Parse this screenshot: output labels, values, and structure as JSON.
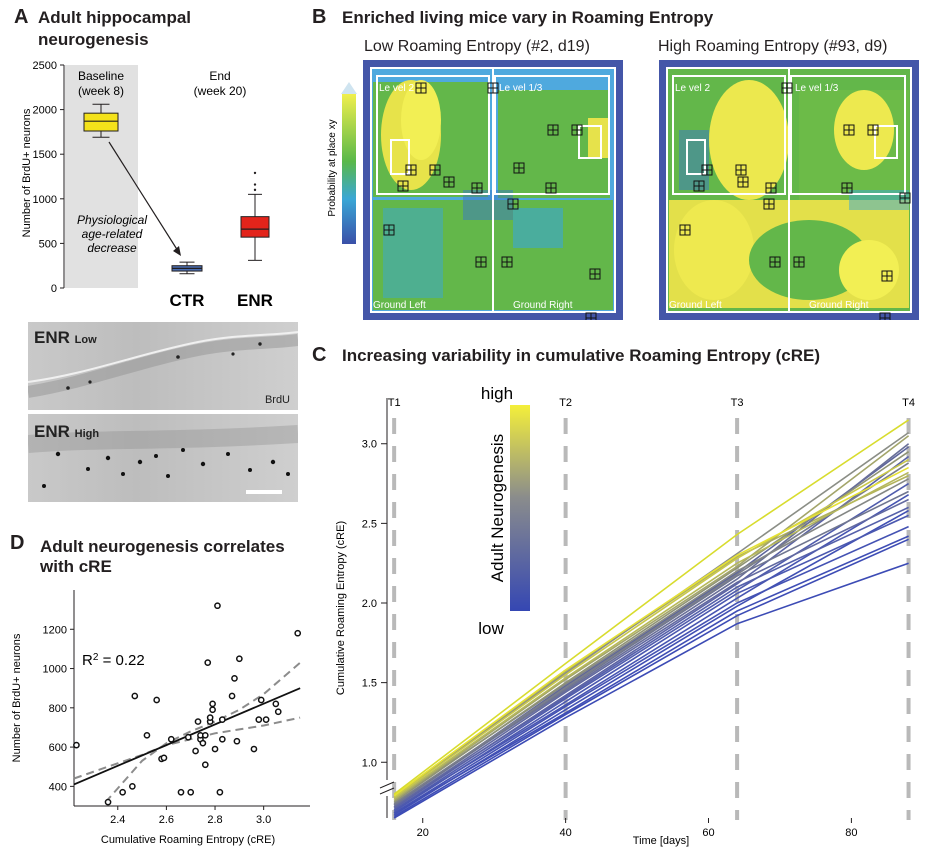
{
  "panelA": {
    "letter": "A",
    "title_line1": "Adult hippocampal",
    "title_line2": "neurogenesis",
    "ylabel": "Number of BrdU+ neurons",
    "yticks": [
      "0",
      "500",
      "1000",
      "1500",
      "2000",
      "2500"
    ],
    "baseline_line1": "Baseline",
    "baseline_line2": "(week 8)",
    "end_line1": "End",
    "end_line2": "(week 20)",
    "annot_line1": "Physiological",
    "annot_line2": "age-related",
    "annot_line3": "decrease",
    "cat_ctr": "CTR",
    "cat_enr": "ENR",
    "img_low_title": "ENR",
    "img_low_sub": "Low",
    "img_high_title": "ENR",
    "img_high_sub": "High",
    "img_stain": "BrdU"
  },
  "panelB": {
    "letter": "B",
    "title": "Enriched living mice vary in Roaming Entropy",
    "left_title": "Low Roaming Entropy (#2, d19)",
    "right_title": "High Roaming Entropy (#93, d9)",
    "colorbar_label": "Probability at place xy",
    "label_level2": "Le vel 2",
    "label_level13": "Le vel 1/3",
    "label_ground_left": "Ground Left",
    "label_ground_right": "Ground Right"
  },
  "panelC": {
    "letter": "C",
    "title": "Increasing variability in cumulative Roaming Entropy (cRE)",
    "ylabel": "Cumulative Roaming Entropy (cRE)",
    "xlabel": "Time [days]",
    "xticks": [
      "20",
      "40",
      "60",
      "80"
    ],
    "yticks": [
      "1.0",
      "1.5",
      "2.0",
      "2.5",
      "3.0"
    ],
    "timepoints": [
      "T1",
      "T2",
      "T3",
      "T4"
    ],
    "legend_title": "Adult Neurogenesis",
    "legend_high": "high",
    "legend_low": "low"
  },
  "panelD": {
    "letter": "D",
    "title_line1": "Adult neurogenesis correlates",
    "title_line2": "with cRE",
    "ylabel": "Number of BrdU+ neurons",
    "xlabel": "Cumulative Roaming Entropy (cRE)",
    "r2_text": "R",
    "r2_value": " = 0.22",
    "xticks": [
      "2.4",
      "2.6",
      "2.8",
      "3.0"
    ],
    "yticks": [
      "400",
      "600",
      "800",
      "1000",
      "1200"
    ]
  },
  "chart_data": [
    {
      "panel": "A",
      "type": "box",
      "ylabel": "Number of BrdU+ neurons",
      "ylim": [
        0,
        2500
      ],
      "groups": [
        {
          "name": "Baseline (week 8)",
          "color": "#f4e21a",
          "whisker_low": 1690,
          "q1": 1760,
          "median": 1870,
          "q3": 1960,
          "whisker_high": 2060,
          "outliers": []
        },
        {
          "name": "CTR",
          "color": "#4a6db0",
          "whisker_low": 160,
          "q1": 190,
          "median": 220,
          "q3": 250,
          "whisker_high": 290,
          "outliers": []
        },
        {
          "name": "ENR",
          "color": "#e3241b",
          "whisker_low": 310,
          "q1": 570,
          "median": 660,
          "q3": 800,
          "whisker_high": 1050,
          "outliers": [
            1100,
            1160,
            1290
          ]
        }
      ]
    },
    {
      "panel": "C",
      "type": "line",
      "xlabel": "Time [days]",
      "ylabel": "Cumulative Roaming Entropy (cRE)",
      "xlim": [
        15,
        91
      ],
      "ylim": [
        0.65,
        3.35
      ],
      "x": [
        16,
        40,
        64,
        88
      ],
      "series": [
        {
          "color": "#d8dc2e",
          "values": [
            0.8,
            1.62,
            2.43,
            3.15
          ]
        },
        {
          "color": "#e6e233",
          "values": [
            0.79,
            1.58,
            2.3,
            2.85
          ]
        },
        {
          "color": "#c9c84a",
          "values": [
            0.78,
            1.55,
            2.28,
            2.9
          ]
        },
        {
          "color": "#b6b85a",
          "values": [
            0.77,
            1.53,
            2.25,
            2.82
          ]
        },
        {
          "color": "#a3a56a",
          "values": [
            0.76,
            1.52,
            2.23,
            3.05
          ]
        },
        {
          "color": "#8f9375",
          "values": [
            0.75,
            1.5,
            2.22,
            2.95
          ]
        },
        {
          "color": "#848785",
          "values": [
            0.76,
            1.49,
            2.2,
            2.78
          ]
        },
        {
          "color": "#7a7e8a",
          "values": [
            0.74,
            1.47,
            2.18,
            2.88
          ]
        },
        {
          "color": "#707690",
          "values": [
            0.73,
            1.46,
            2.17,
            2.7
          ]
        },
        {
          "color": "#696f98",
          "values": [
            0.74,
            1.45,
            2.15,
            3.0
          ]
        },
        {
          "color": "#6269a0",
          "values": [
            0.72,
            1.44,
            2.13,
            2.65
          ]
        },
        {
          "color": "#5b63a5",
          "values": [
            0.71,
            1.42,
            2.12,
            2.92
          ]
        },
        {
          "color": "#5560aa",
          "values": [
            0.72,
            1.41,
            2.1,
            2.6
          ]
        },
        {
          "color": "#505cad",
          "values": [
            0.7,
            1.4,
            2.08,
            2.75
          ]
        },
        {
          "color": "#4b58b0",
          "values": [
            0.69,
            1.38,
            2.06,
            2.55
          ]
        },
        {
          "color": "#4755b2",
          "values": [
            0.7,
            1.36,
            2.03,
            2.68
          ]
        },
        {
          "color": "#4452b3",
          "values": [
            0.68,
            1.35,
            2.0,
            2.48
          ]
        },
        {
          "color": "#4150b4",
          "values": [
            0.67,
            1.33,
            1.98,
            2.58
          ]
        },
        {
          "color": "#3f4eb5",
          "values": [
            0.68,
            1.31,
            1.95,
            2.42
          ]
        },
        {
          "color": "#3d4cb5",
          "values": [
            0.66,
            1.3,
            1.92,
            2.4
          ]
        },
        {
          "color": "#3c4bb5",
          "values": [
            0.65,
            1.28,
            1.87,
            2.25
          ]
        },
        {
          "color": "#8b8e86",
          "values": [
            0.78,
            1.56,
            2.31,
            3.07
          ]
        },
        {
          "color": "#b2b35c",
          "values": [
            0.79,
            1.57,
            2.29,
            2.8
          ]
        },
        {
          "color": "#5d659c",
          "values": [
            0.73,
            1.48,
            2.19,
            2.98
          ]
        }
      ]
    },
    {
      "panel": "D",
      "type": "scatter",
      "xlabel": "Cumulative Roaming Entropy (cRE)",
      "ylabel": "Number of BrdU+ neurons",
      "xlim": [
        2.22,
        3.17
      ],
      "ylim": [
        300,
        1400
      ],
      "r2": 0.22,
      "fit": {
        "x": [
          2.22,
          3.15
        ],
        "y": [
          410,
          900
        ]
      },
      "ci_upper": {
        "x": [
          2.35,
          2.5,
          2.6,
          2.7,
          2.8,
          2.9,
          3.0,
          3.15
        ],
        "y": [
          320,
          530,
          620,
          680,
          730,
          790,
          870,
          1030
        ]
      },
      "ci_lower": {
        "x": [
          2.22,
          2.5,
          2.6,
          2.7,
          2.8,
          2.9,
          3.0,
          3.15
        ],
        "y": [
          440,
          560,
          610,
          640,
          670,
          690,
          710,
          750
        ]
      },
      "points": {
        "x": [
          2.23,
          2.36,
          2.42,
          2.46,
          2.47,
          2.52,
          2.56,
          2.58,
          2.59,
          2.62,
          2.66,
          2.69,
          2.7,
          2.72,
          2.73,
          2.74,
          2.75,
          2.76,
          2.77,
          2.78,
          2.78,
          2.79,
          2.79,
          2.8,
          2.81,
          2.82,
          2.83,
          2.83,
          2.87,
          2.88,
          2.89,
          2.9,
          2.96,
          2.98,
          2.99,
          3.01,
          3.05,
          3.06,
          3.14,
          2.74,
          2.76
        ],
        "y": [
          610,
          320,
          370,
          400,
          860,
          660,
          840,
          540,
          545,
          640,
          370,
          650,
          370,
          580,
          730,
          640,
          620,
          510,
          1030,
          730,
          750,
          790,
          820,
          590,
          1320,
          370,
          640,
          740,
          860,
          950,
          630,
          1050,
          590,
          740,
          840,
          740,
          820,
          780,
          1180,
          660,
          660
        ]
      }
    }
  ]
}
